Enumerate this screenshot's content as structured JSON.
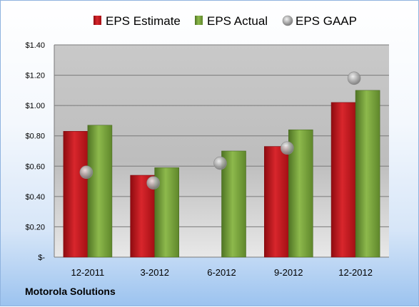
{
  "chart_data": {
    "type": "bar",
    "title": "",
    "xlabel": "",
    "ylabel": "",
    "categories": [
      "12-2011",
      "3-2012",
      "6-2012",
      "9-2012",
      "12-2012"
    ],
    "series": [
      {
        "name": "EPS Estimate",
        "kind": "bar",
        "color": "#c0161c",
        "values": [
          0.83,
          0.54,
          null,
          0.73,
          1.02
        ]
      },
      {
        "name": "EPS Actual",
        "kind": "bar",
        "color": "#77a33b",
        "values": [
          0.87,
          0.59,
          0.7,
          0.84,
          1.1
        ]
      },
      {
        "name": "EPS GAAP",
        "kind": "marker",
        "color": "#9a9a9a",
        "values": [
          0.56,
          0.49,
          0.62,
          0.72,
          1.18
        ]
      }
    ],
    "ylim": [
      0,
      1.4
    ],
    "yticks": [
      0,
      0.2,
      0.4,
      0.6,
      0.8,
      1.0,
      1.2,
      1.4
    ],
    "ytick_labels": [
      "$-",
      "$0.20",
      "$0.40",
      "$0.60",
      "$0.80",
      "$1.00",
      "$1.20",
      "$1.40"
    ],
    "grid": true,
    "legend_position": "top"
  },
  "footer": {
    "company": "Motorola Solutions"
  }
}
